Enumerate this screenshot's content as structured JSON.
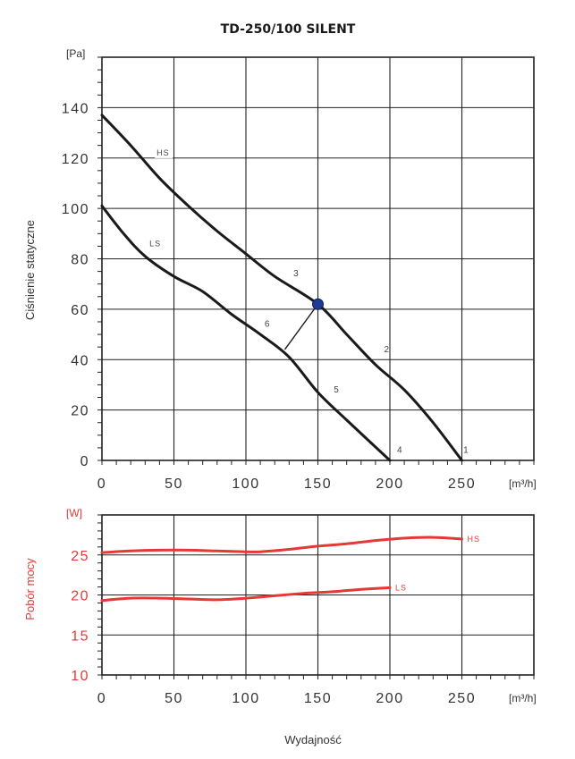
{
  "chart_data": [
    {
      "type": "line",
      "title": "TD-250/100 SILENT",
      "ylabel": "Ciśnienie statyczne",
      "y_unit": "[Pa]",
      "x_unit": "[m³/h]",
      "xlim": [
        0,
        300
      ],
      "ylim": [
        0,
        160
      ],
      "x_ticks": [
        "0",
        "50",
        "100",
        "150",
        "200",
        "250"
      ],
      "y_ticks": [
        "0",
        "20",
        "40",
        "60",
        "80",
        "100",
        "120",
        "140"
      ],
      "series": [
        {
          "name": "HS",
          "color": "#1a1a1a",
          "x": [
            0,
            20,
            40,
            60,
            80,
            100,
            120,
            150,
            170,
            190,
            210,
            230,
            250
          ],
          "y": [
            137,
            125,
            112,
            101,
            91,
            82,
            73,
            62,
            50,
            38,
            28,
            15,
            0
          ]
        },
        {
          "name": "LS",
          "color": "#1a1a1a",
          "x": [
            0,
            15,
            30,
            50,
            70,
            90,
            110,
            130,
            150,
            170,
            200
          ],
          "y": [
            101,
            90,
            81,
            73,
            67,
            58,
            50,
            41,
            27,
            16,
            0
          ]
        }
      ],
      "operating_point": {
        "x": 150,
        "y": 62,
        "color": "#1f3a93"
      },
      "connector": {
        "x": [
          150,
          127
        ],
        "y": [
          62,
          44
        ]
      },
      "annotations": [
        {
          "text": "1",
          "x": 251,
          "y": 3
        },
        {
          "text": "2",
          "x": 196,
          "y": 43
        },
        {
          "text": "3",
          "x": 133,
          "y": 73
        },
        {
          "text": "4",
          "x": 205,
          "y": 3
        },
        {
          "text": "5",
          "x": 161,
          "y": 27
        },
        {
          "text": "6",
          "x": 113,
          "y": 53
        }
      ]
    },
    {
      "type": "line",
      "ylabel": "Pobór mocy",
      "ylabel_color": "#e53935",
      "y_unit": "[W]",
      "y_unit_color": "#e53935",
      "x_unit": "[m³/h]",
      "xlabel": "Wydajność",
      "xlim": [
        0,
        300
      ],
      "ylim": [
        10,
        30
      ],
      "x_ticks": [
        "0",
        "50",
        "100",
        "150",
        "200",
        "250"
      ],
      "y_ticks": [
        "10",
        "15",
        "20",
        "25"
      ],
      "series": [
        {
          "name": "HS",
          "color": "#e53935",
          "x": [
            0,
            20,
            40,
            60,
            80,
            100,
            110,
            130,
            150,
            170,
            190,
            210,
            230,
            250
          ],
          "y": [
            25.3,
            25.5,
            25.6,
            25.6,
            25.5,
            25.4,
            25.4,
            25.7,
            26.1,
            26.4,
            26.8,
            27.1,
            27.2,
            27.0
          ]
        },
        {
          "name": "LS",
          "color": "#e53935",
          "x": [
            0,
            20,
            40,
            60,
            80,
            100,
            120,
            140,
            160,
            180,
            200
          ],
          "y": [
            19.3,
            19.6,
            19.6,
            19.5,
            19.4,
            19.6,
            19.9,
            20.2,
            20.4,
            20.7,
            20.9
          ]
        }
      ]
    }
  ]
}
